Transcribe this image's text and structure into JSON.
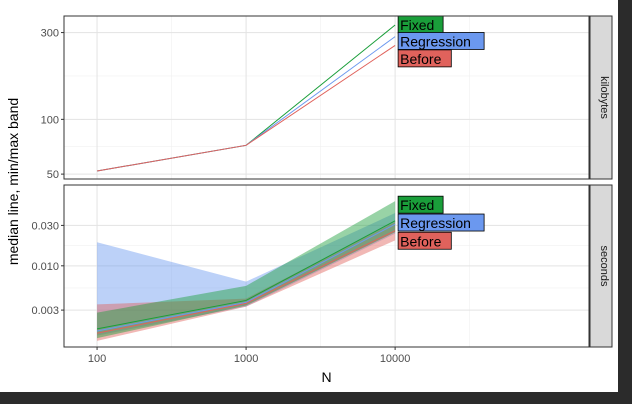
{
  "chart_data": {
    "type": "line",
    "xlabel": "N",
    "ylabel": "median line, min/max band",
    "x": [
      100,
      1000,
      10000
    ],
    "x_scale": "log10",
    "x_ticks": [
      "100",
      "1000",
      "10000"
    ],
    "xlim": [
      60,
      200000
    ],
    "grid": true,
    "legend_placement": "inline labels at right end of lines",
    "series_colors": {
      "Fixed": "#1a9e3a",
      "Regression": "#6b98ef",
      "Before": "#e0625c"
    },
    "panels": [
      {
        "strip": "kilobytes",
        "y_scale": "log10",
        "ylim": [
          47,
          370
        ],
        "y_ticks": [
          {
            "value": 50,
            "label": "50"
          },
          {
            "value": 100,
            "label": "100"
          },
          {
            "value": 300,
            "label": "300"
          }
        ],
        "series": [
          {
            "name": "Fixed",
            "median": [
              52,
              72,
              330
            ],
            "min": [
              52,
              72,
              330
            ],
            "max": [
              52,
              72,
              330
            ]
          },
          {
            "name": "Regression",
            "median": [
              52,
              72,
              285
            ],
            "min": [
              52,
              72,
              285
            ],
            "max": [
              52,
              72,
              285
            ]
          },
          {
            "name": "Before",
            "median": [
              52,
              72,
              255
            ],
            "min": [
              52,
              72,
              255
            ],
            "max": [
              52,
              72,
              255
            ]
          }
        ],
        "labels": [
          {
            "text": "Fixed",
            "series": "Fixed",
            "y": 330
          },
          {
            "text": "Regression",
            "series": "Regression",
            "y": 268
          },
          {
            "text": "Before",
            "series": "Before",
            "y": 215
          }
        ]
      },
      {
        "strip": "seconds",
        "y_scale": "log10",
        "ylim": [
          0.0011,
          0.09
        ],
        "y_ticks": [
          {
            "value": 0.003,
            "label": "0.003"
          },
          {
            "value": 0.01,
            "label": "0.010"
          },
          {
            "value": 0.03,
            "label": "0.030"
          }
        ],
        "series": [
          {
            "name": "Regression",
            "median": [
              0.0017,
              0.0037,
              0.031
            ],
            "min": [
              0.0015,
              0.0033,
              0.024
            ],
            "max": [
              0.019,
              0.0065,
              0.042
            ]
          },
          {
            "name": "Before",
            "median": [
              0.0016,
              0.0036,
              0.026
            ],
            "min": [
              0.0013,
              0.0033,
              0.02
            ],
            "max": [
              0.0035,
              0.0041,
              0.033
            ]
          },
          {
            "name": "Fixed",
            "median": [
              0.0018,
              0.0039,
              0.034
            ],
            "min": [
              0.0014,
              0.0034,
              0.025
            ],
            "max": [
              0.0028,
              0.0058,
              0.058
            ]
          }
        ],
        "labels": [
          {
            "text": "Fixed",
            "series": "Fixed",
            "y": 0.052
          },
          {
            "text": "Regression",
            "series": "Regression",
            "y": 0.032
          },
          {
            "text": "Before",
            "series": "Before",
            "y": 0.0195
          }
        ]
      }
    ]
  }
}
